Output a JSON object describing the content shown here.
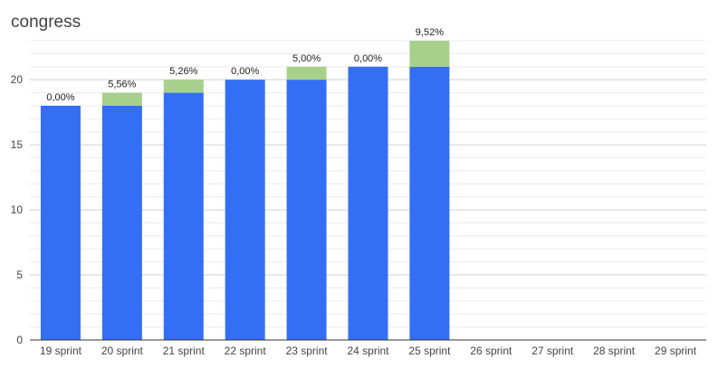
{
  "chart_data": {
    "type": "bar",
    "stacked": true,
    "title": "congress",
    "xlabel": "",
    "ylabel": "",
    "ylim": [
      0,
      23
    ],
    "yticks": [
      0,
      5,
      10,
      15,
      20
    ],
    "grid": true,
    "categories": [
      "19 sprint",
      "20 sprint",
      "21 sprint",
      "22 sprint",
      "23 sprint",
      "24 sprint",
      "25 sprint",
      "26 sprint",
      "27 sprint",
      "28 sprint",
      "29 sprint"
    ],
    "series": [
      {
        "values": [
          18,
          18,
          19,
          20,
          20,
          21,
          21,
          null,
          null,
          null,
          null
        ],
        "color": "#336ef5"
      },
      {
        "values": [
          0,
          1,
          1,
          0,
          1,
          0,
          2,
          null,
          null,
          null,
          null
        ],
        "color": "#a8d08d"
      }
    ],
    "data_labels": [
      "0,00%",
      "5,56%",
      "5,26%",
      "0,00%",
      "5,00%",
      "0,00%",
      "9,52%",
      "",
      "",
      "",
      ""
    ]
  }
}
